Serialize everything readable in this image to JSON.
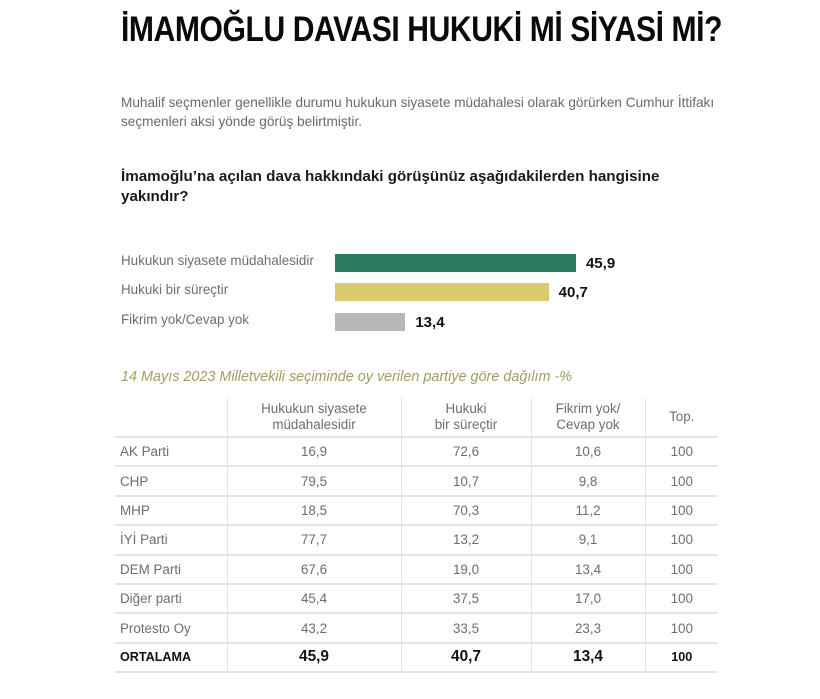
{
  "header": {
    "title": "İMAMOĞLU DAVASI HUKUKİ Mİ SİYASİ Mİ?",
    "intro": "Muhalif seçmenler genellikle durumu hukukun siyasete müdahalesi olarak görürken Cumhur İttifakı seçmenleri aksi yönde görüş belirtmiştir.",
    "question": "İmamoğlu’na açılan dava hakkındaki görüşünüz aşağıdakilerden hangisine yakındır?"
  },
  "colors": {
    "bar_political": "#2a7a62",
    "bar_legal": "#d9cb6c",
    "bar_noidea": "#b7b7b7",
    "subtitle": "#a59c5c"
  },
  "bars": [
    {
      "label": "Hukukun siyasete müdahalesidir",
      "value_text": "45,9",
      "value": 45.9,
      "color": "#2a7a62"
    },
    {
      "label": "Hukuki bir süreçtir",
      "value_text": "40,7",
      "value": 40.7,
      "color": "#d9cb6c"
    },
    {
      "label": "Fikrim yok/Cevap yok",
      "value_text": "13,4",
      "value": 13.4,
      "color": "#b7b7b7"
    }
  ],
  "table": {
    "subtitle": "14 Mayıs 2023 Milletvekili seçiminde oy verilen partiye göre dağılım -%",
    "headers": [
      {
        "line1": "",
        "line2": ""
      },
      {
        "line1": "Hukukun siyasete",
        "line2": "müdahalesidir"
      },
      {
        "line1": "Hukuki",
        "line2": "bir süreçtir"
      },
      {
        "line1": "Fikrim yok/",
        "line2": "Cevap yok"
      },
      {
        "line1": "Top.",
        "line2": ""
      }
    ],
    "rows": [
      {
        "party": "AK Parti",
        "political": "16,9",
        "legal": "72,6",
        "noidea": "10,6",
        "total": "100"
      },
      {
        "party": "CHP",
        "political": "79,5",
        "legal": "10,7",
        "noidea": "9,8",
        "total": "100"
      },
      {
        "party": "MHP",
        "political": "18,5",
        "legal": "70,3",
        "noidea": "11,2",
        "total": "100"
      },
      {
        "party": "İYİ Parti",
        "political": "77,7",
        "legal": "13,2",
        "noidea": "9,1",
        "total": "100"
      },
      {
        "party": "DEM Parti",
        "political": "67,6",
        "legal": "19,0",
        "noidea": "13,4",
        "total": "100"
      },
      {
        "party": "Diğer parti",
        "political": "45,4",
        "legal": "37,5",
        "noidea": "17,0",
        "total": "100"
      },
      {
        "party": "Protesto Oy",
        "political": "43,2",
        "legal": "33,5",
        "noidea": "23,3",
        "total": "100"
      }
    ],
    "average": {
      "party": "ORTALAMA",
      "political": "45,9",
      "legal": "40,7",
      "noidea": "13,4",
      "total": "100"
    }
  },
  "chart_data": [
    {
      "type": "bar",
      "orientation": "horizontal",
      "title": "İmamoğlu’na açılan dava hakkındaki görüşünüz aşağıdakilerden hangisine yakındır?",
      "categories": [
        "Hukukun siyasete müdahalesidir",
        "Hukuki bir süreçtir",
        "Fikrim yok/Cevap yok"
      ],
      "values": [
        45.9,
        40.7,
        13.4
      ],
      "colors": [
        "#2a7a62",
        "#d9cb6c",
        "#b7b7b7"
      ],
      "xlabel": "",
      "ylabel": "",
      "grid": false,
      "legend": "none"
    },
    {
      "type": "table",
      "title": "14 Mayıs 2023 Milletvekili seçiminde oy verilen partiye göre dağılım -%",
      "columns": [
        "",
        "Hukukun siyasete müdahalesidir",
        "Hukuki bir süreçtir",
        "Fikrim yok/Cevap yok",
        "Top."
      ],
      "rows": [
        [
          "AK Parti",
          16.9,
          72.6,
          10.6,
          100
        ],
        [
          "CHP",
          79.5,
          10.7,
          9.8,
          100
        ],
        [
          "MHP",
          18.5,
          70.3,
          11.2,
          100
        ],
        [
          "İYİ Parti",
          77.7,
          13.2,
          9.1,
          100
        ],
        [
          "DEM Parti",
          67.6,
          19.0,
          13.4,
          100
        ],
        [
          "Diğer parti",
          45.4,
          37.5,
          17.0,
          100
        ],
        [
          "Protesto Oy",
          43.2,
          33.5,
          23.3,
          100
        ],
        [
          "ORTALAMA",
          45.9,
          40.7,
          13.4,
          100
        ]
      ]
    }
  ]
}
